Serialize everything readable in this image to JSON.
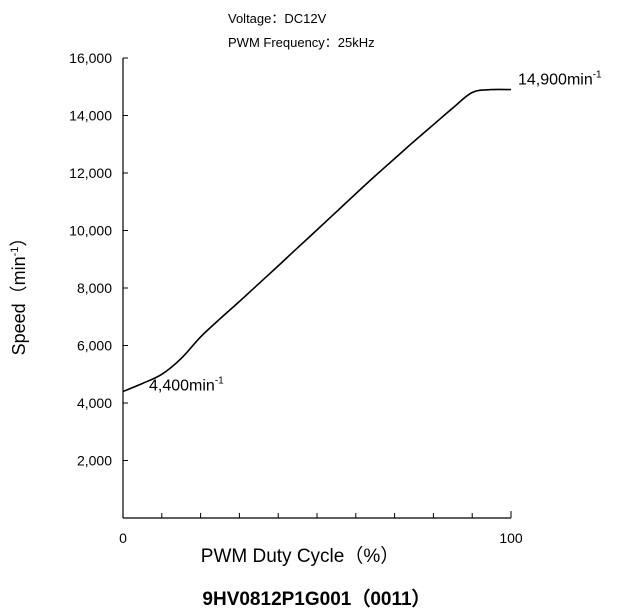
{
  "conditions": {
    "voltage": "Voltage：DC12V",
    "pwm_frequency": "PWM Frequency：25kHz"
  },
  "model_title": "9HV0812P1G001（0011）",
  "chart_data": {
    "type": "line",
    "xlabel": "PWM Duty Cycle（%）",
    "ylabel_text": "Speed（min",
    "ylabel_sup": "-1",
    "ylabel_close": "）",
    "xlim": [
      0,
      100
    ],
    "ylim": [
      0,
      16000
    ],
    "x_tick_labels": [
      {
        "value": 0,
        "label": "0"
      },
      {
        "value": 100,
        "label": "100"
      }
    ],
    "x_minor_ticks": [
      10,
      20,
      30,
      40,
      50,
      60,
      70,
      80,
      90
    ],
    "y_ticks": [
      {
        "value": 2000,
        "label": "2,000"
      },
      {
        "value": 4000,
        "label": "4,000"
      },
      {
        "value": 6000,
        "label": "6,000"
      },
      {
        "value": 8000,
        "label": "8,000"
      },
      {
        "value": 10000,
        "label": "10,000"
      },
      {
        "value": 12000,
        "label": "12,000"
      },
      {
        "value": 14000,
        "label": "14,000"
      },
      {
        "value": 16000,
        "label": "16,000"
      }
    ],
    "series": [
      {
        "x": [
          0,
          5,
          10,
          15,
          20,
          25,
          30,
          35,
          40,
          45,
          50,
          55,
          60,
          65,
          70,
          75,
          80,
          85,
          90,
          95,
          100
        ],
        "y": [
          4400,
          4680,
          5000,
          5550,
          6300,
          6930,
          7530,
          8150,
          8770,
          9400,
          10020,
          10650,
          11280,
          11900,
          12500,
          13100,
          13680,
          14260,
          14800,
          14900,
          14900
        ],
        "color": "#000000"
      }
    ],
    "annotations": [
      {
        "id": "min",
        "x": 0,
        "y": 4400,
        "text": "4,400min",
        "sup": "-1"
      },
      {
        "id": "max",
        "x": 100,
        "y": 14900,
        "text": "14,900min",
        "sup": "-1"
      }
    ],
    "grid": false
  }
}
